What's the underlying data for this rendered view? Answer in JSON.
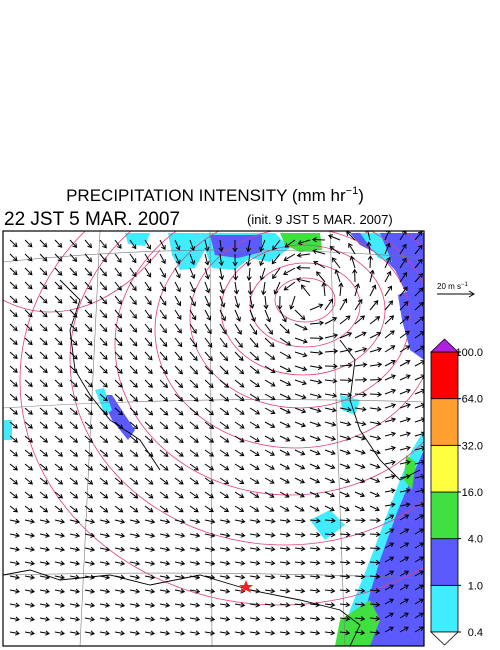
{
  "header": {
    "title": {
      "text": "PRECIPITATION INTENSITY (mm hr",
      "superscript": "−1",
      "close": ")"
    },
    "valid_time": "22 JST 5 MAR. 2007",
    "init_time": "(init. 9 JST 5 MAR. 2007)"
  },
  "wind_reference": {
    "text": "20 m s",
    "superscript": "−1"
  },
  "colorbar": {
    "levels": [
      0.4,
      {
        "value": 1.0,
        "label": "1.0"
      },
      {
        "value": 4.0,
        "label": "4.0"
      },
      {
        "value": 16.0,
        "label": "16.0"
      },
      {
        "value": 32.0,
        "label": "32.0"
      },
      {
        "value": 64.0,
        "label": "64.0"
      },
      {
        "value": 100.0,
        "label": "100.0"
      }
    ],
    "colors": [
      "#40ecff",
      "#5a5aff",
      "#40e040",
      "#ffff40",
      "#ffa030",
      "#ff0000"
    ],
    "under_color": "#ffffff",
    "over_color": "#b020e0"
  }
}
